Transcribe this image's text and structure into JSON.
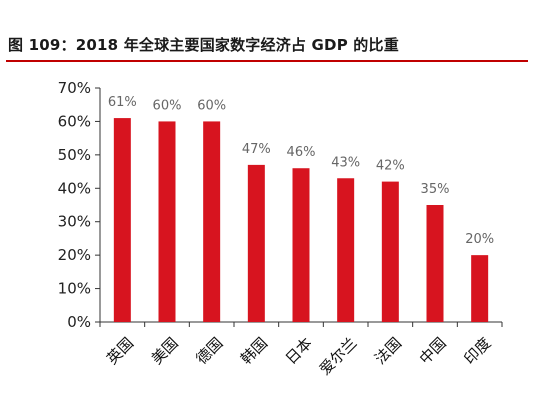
{
  "figure": {
    "title": "图 109：2018 年全球主要国家数字经济占 GDP 的比重"
  },
  "chart_data": {
    "type": "bar",
    "title": "",
    "xlabel": "",
    "ylabel": "",
    "categories": [
      "英国",
      "美国",
      "德国",
      "韩国",
      "日本",
      "爱尔兰",
      "法国",
      "中国",
      "印度"
    ],
    "values": [
      61,
      60,
      60,
      47,
      46,
      43,
      42,
      35,
      20
    ],
    "value_labels": [
      "61%",
      "60%",
      "60%",
      "47%",
      "46%",
      "43%",
      "42%",
      "35%",
      "20%"
    ],
    "yticks": [
      "0%",
      "10%",
      "20%",
      "30%",
      "40%",
      "50%",
      "60%",
      "70%"
    ],
    "ylim": [
      0,
      70
    ],
    "grid": false,
    "legend": "none",
    "bar_color": "#d7141f",
    "accent_color": "#c00000"
  }
}
